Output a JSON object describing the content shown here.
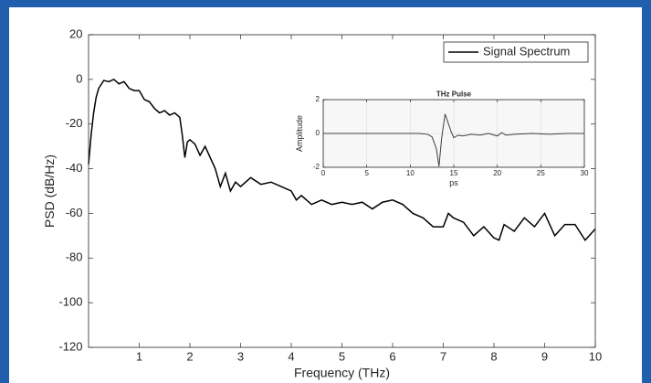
{
  "chart_data": [
    {
      "type": "line",
      "x_label": "Frequency (THz)",
      "y_label": "PSD (dB/Hz)",
      "xlim": [
        0,
        10
      ],
      "xticks": [
        1,
        2,
        3,
        4,
        5,
        6,
        7,
        8,
        9,
        10
      ],
      "ylim": [
        -120,
        20
      ],
      "yticks": [
        -120,
        -100,
        -80,
        -60,
        -40,
        -20,
        0,
        20
      ],
      "grid": false,
      "legend": "upper right",
      "series": [
        {
          "name": "Signal Spectrum",
          "color": "#000000",
          "x": [
            0,
            0.05,
            0.1,
            0.15,
            0.2,
            0.3,
            0.4,
            0.5,
            0.6,
            0.7,
            0.8,
            0.9,
            1.0,
            1.1,
            1.2,
            1.3,
            1.4,
            1.5,
            1.6,
            1.7,
            1.8,
            1.85,
            1.9,
            1.95,
            2.0,
            2.1,
            2.2,
            2.3,
            2.4,
            2.5,
            2.6,
            2.7,
            2.8,
            2.9,
            3.0,
            3.2,
            3.4,
            3.6,
            3.8,
            4.0,
            4.1,
            4.2,
            4.4,
            4.6,
            4.8,
            5.0,
            5.2,
            5.4,
            5.6,
            5.8,
            6.0,
            6.2,
            6.4,
            6.6,
            6.8,
            7.0,
            7.1,
            7.2,
            7.4,
            7.6,
            7.8,
            8.0,
            8.1,
            8.2,
            8.4,
            8.6,
            8.8,
            9.0,
            9.2,
            9.4,
            9.6,
            9.8,
            10
          ],
          "values": [
            -38,
            -25,
            -15,
            -8,
            -4,
            -0.5,
            -1,
            0,
            -2,
            -1,
            -4,
            -5,
            -5,
            -9,
            -10,
            -13,
            -15,
            -14,
            -16,
            -15,
            -17,
            -25,
            -35,
            -28,
            -27,
            -29,
            -34,
            -30,
            -35,
            -40,
            -48,
            -42,
            -50,
            -46,
            -48,
            -44,
            -47,
            -46,
            -48,
            -50,
            -54,
            -52,
            -56,
            -54,
            -56,
            -55,
            -56,
            -55,
            -58,
            -55,
            -54,
            -56,
            -60,
            -62,
            -66,
            -66,
            -60,
            -62,
            -64,
            -70,
            -66,
            -71,
            -72,
            -65,
            -68,
            -62,
            -66,
            -60,
            -70,
            -65,
            -65,
            -72,
            -67
          ]
        }
      ]
    },
    {
      "type": "line",
      "title": "THz Pulse",
      "x_label": "ps",
      "y_label": "Amplitude",
      "xlim": [
        0,
        30
      ],
      "xticks": [
        0,
        5,
        10,
        15,
        20,
        25,
        30
      ],
      "ylim": [
        -2,
        2
      ],
      "yticks": [
        -2,
        0,
        2
      ],
      "grid": true,
      "series": [
        {
          "color": "#404040",
          "x": [
            0,
            2,
            4,
            6,
            8,
            10,
            11,
            12,
            12.5,
            13,
            13.3,
            13.6,
            14,
            14.3,
            14.7,
            15,
            15.5,
            16,
            17,
            18,
            19,
            20,
            20.5,
            21,
            22,
            24,
            26,
            28,
            30
          ],
          "values": [
            0,
            0,
            0,
            0,
            0,
            0,
            0,
            -0.05,
            -0.2,
            -0.9,
            -1.95,
            -0.3,
            1.15,
            0.7,
            0.1,
            -0.25,
            -0.1,
            -0.15,
            -0.05,
            -0.1,
            0,
            -0.15,
            0.05,
            -0.1,
            -0.05,
            0,
            -0.05,
            0,
            0
          ]
        }
      ]
    }
  ]
}
